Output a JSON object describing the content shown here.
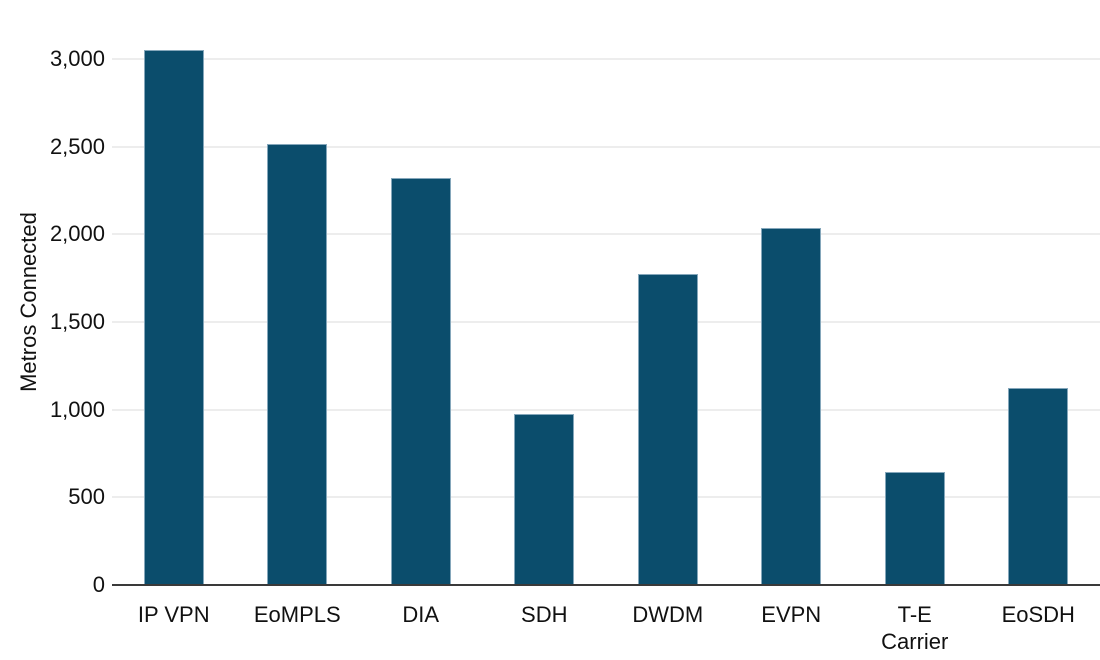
{
  "chart_data": {
    "type": "bar",
    "title": "",
    "xlabel": "",
    "ylabel": "Metros Connected",
    "categories": [
      "IP VPN",
      "EoMPLS",
      "DIA",
      "SDH",
      "DWDM",
      "EVPN",
      "T-E Carrier",
      "EoSDH"
    ],
    "xtick_labels": [
      "IP VPN",
      "EoMPLS",
      "DIA",
      "SDH",
      "DWDM",
      "EVPN",
      "T-E\nCarrier",
      "EoSDH"
    ],
    "values": [
      3050,
      2515,
      2320,
      975,
      1775,
      2035,
      645,
      1125
    ],
    "ylim": [
      0,
      3250
    ],
    "yticks": [
      0,
      500,
      1000,
      1500,
      2000,
      2500,
      3000
    ],
    "ytick_labels": [
      "0",
      "500",
      "1,000",
      "1,500",
      "2,000",
      "2,500",
      "3,000"
    ],
    "grid": "horizontal",
    "legend": false,
    "colors": {
      "bar_fill": "#0b4d6c",
      "bar_edge": "#85a7bb",
      "gridline": "#ededed",
      "axis_line": "#3a3a3a",
      "text": "#111111",
      "background": "#ffffff"
    }
  }
}
